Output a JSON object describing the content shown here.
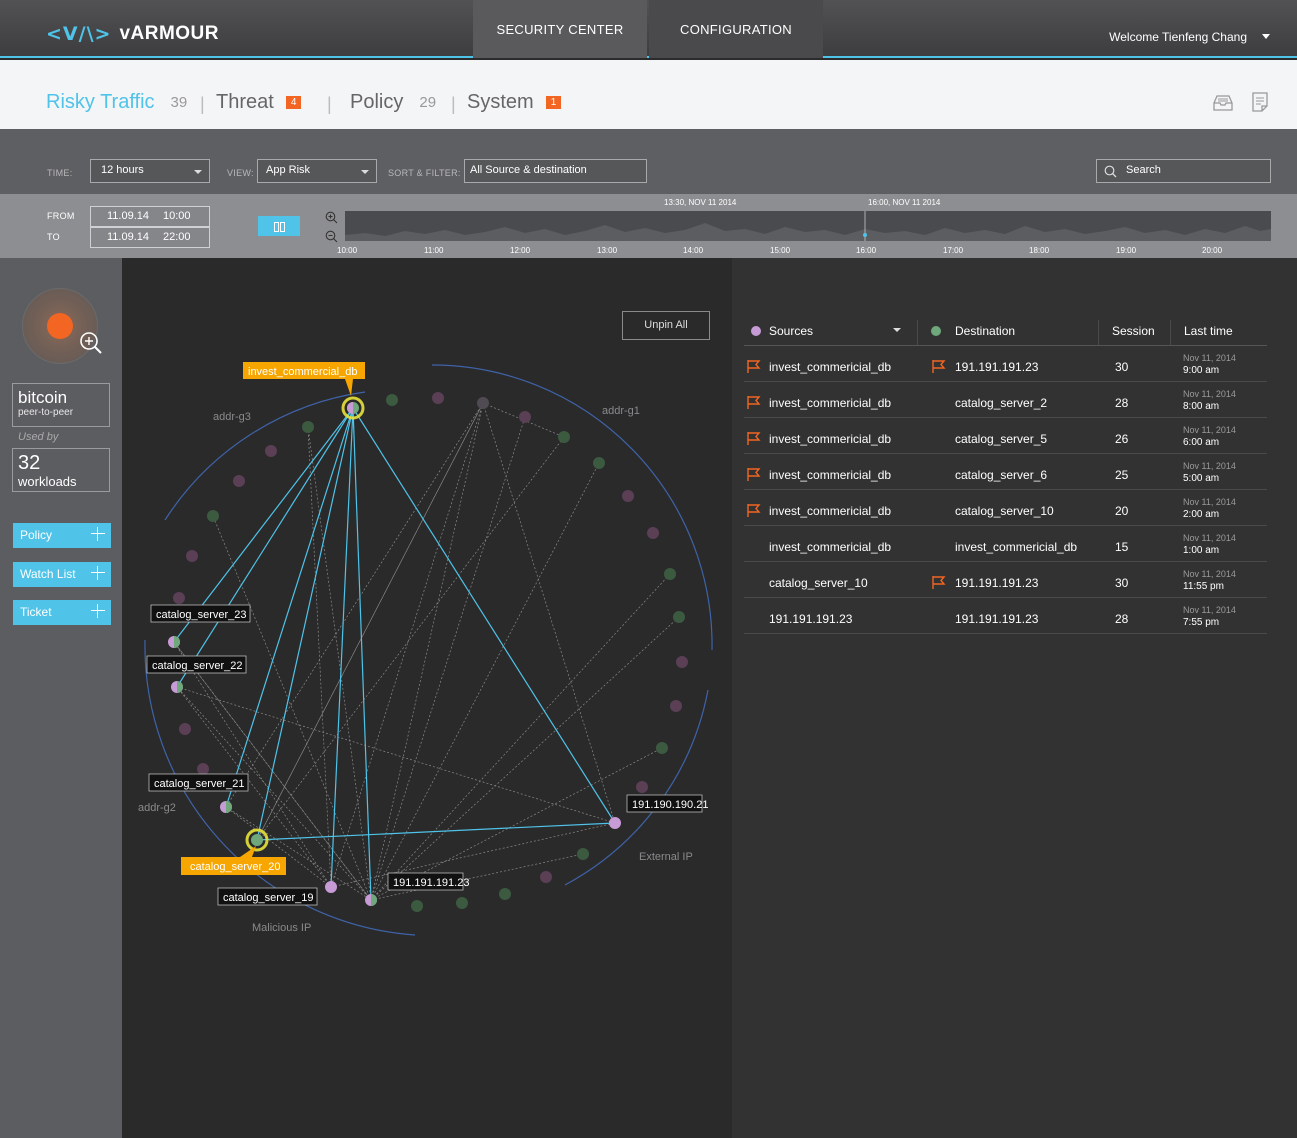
{
  "app": {
    "logo_mark": "<V/\\>",
    "logo_text": "vARMOUR",
    "nav": [
      "SECURITY CENTER",
      "CONFIGURATION"
    ],
    "welcome": "Welcome Tienfeng Chang"
  },
  "tabs": [
    {
      "label": "Risky Traffic",
      "count": "39",
      "color": "#4fc3e8"
    },
    {
      "label": "Threat",
      "badge": "4"
    },
    {
      "label": "Policy",
      "count": "29"
    },
    {
      "label": "System",
      "badge": "1"
    }
  ],
  "filters": {
    "time_label": "TIME:",
    "time_value": "12 hours",
    "view_label": "VIEW:",
    "view_value": "App Risk",
    "sort_label": "SORT & FILTER:",
    "sort_value": "All Source & destination",
    "search_placeholder": "Search"
  },
  "timerange": {
    "from_label": "FROM",
    "to_label": "TO",
    "from_date": "11.09.14",
    "from_time": "10:00",
    "to_date": "11.09.14",
    "to_time": "22:00",
    "marker_a": "13:30, NOV 11 2014",
    "marker_b": "16:00, NOV 11 2014",
    "ticks": [
      "10:00",
      "11:00",
      "12:00",
      "13:00",
      "14:00",
      "15:00",
      "16:00",
      "17:00",
      "18:00",
      "19:00",
      "20:00"
    ]
  },
  "app_panel": {
    "name": "bitcoin",
    "category": "peer-to-peer",
    "used_by": "Used by",
    "workloads_count": "32",
    "workloads_label": "workloads",
    "buttons": [
      "Policy",
      "Watch List",
      "Ticket"
    ]
  },
  "graph": {
    "unpin": "Unpin All",
    "groups": [
      "addr-g3",
      "addr-g1",
      "addr-g2",
      "Malicious IP",
      "External IP"
    ],
    "labels": {
      "invest_commercial_db": "invest_commercial_db",
      "catalog_server_23": "catalog_server_23",
      "catalog_server_22": "catalog_server_22",
      "catalog_server_21": "catalog_server_21",
      "catalog_server_20": "catalog_server_20",
      "catalog_server_19": "catalog_server_19",
      "ip_23": "191.191.191.23",
      "ip_21": "191.190.190.21"
    }
  },
  "table": {
    "headers": {
      "sources": "Sources",
      "destination": "Destination",
      "session": "Session",
      "last_time": "Last time"
    },
    "rows": [
      {
        "src_flag": true,
        "source": "invest_commericial_db",
        "dst_flag": true,
        "destination": "191.191.191.23",
        "session": "30",
        "date": "Nov 11, 2014",
        "time": "9:00 am"
      },
      {
        "src_flag": true,
        "source": "invest_commericial_db",
        "dst_flag": false,
        "destination": "catalog_server_2",
        "session": "28",
        "date": "Nov 11, 2014",
        "time": "8:00 am"
      },
      {
        "src_flag": true,
        "source": "invest_commericial_db",
        "dst_flag": false,
        "destination": "catalog_server_5",
        "session": "26",
        "date": "Nov 11, 2014",
        "time": "6:00 am"
      },
      {
        "src_flag": true,
        "source": "invest_commericial_db",
        "dst_flag": false,
        "destination": "catalog_server_6",
        "session": "25",
        "date": "Nov 11, 2014",
        "time": "5:00 am"
      },
      {
        "src_flag": true,
        "source": "invest_commericial_db",
        "dst_flag": false,
        "destination": "catalog_server_10",
        "session": "20",
        "date": "Nov 11, 2014",
        "time": "2:00 am"
      },
      {
        "src_flag": false,
        "source": "invest_commericial_db",
        "dst_flag": false,
        "destination": "invest_commericial_db",
        "session": "15",
        "date": "Nov 11, 2014",
        "time": "1:00 am"
      },
      {
        "src_flag": false,
        "source": "catalog_server_10",
        "dst_flag": true,
        "destination": "191.191.191.23",
        "session": "30",
        "date": "Nov 11, 2014",
        "time": "11:55 pm"
      },
      {
        "src_flag": false,
        "source": "191.191.191.23",
        "dst_flag": false,
        "destination": "191.191.191.23",
        "session": "28",
        "date": "Nov 11, 2014",
        "time": "7:55 pm"
      }
    ]
  },
  "colors": {
    "accent": "#4fc3e8",
    "alert": "#f26522",
    "highlight": "#f7a600",
    "source_dot": "#c79bd6",
    "dest_dot": "#6fa87a"
  }
}
